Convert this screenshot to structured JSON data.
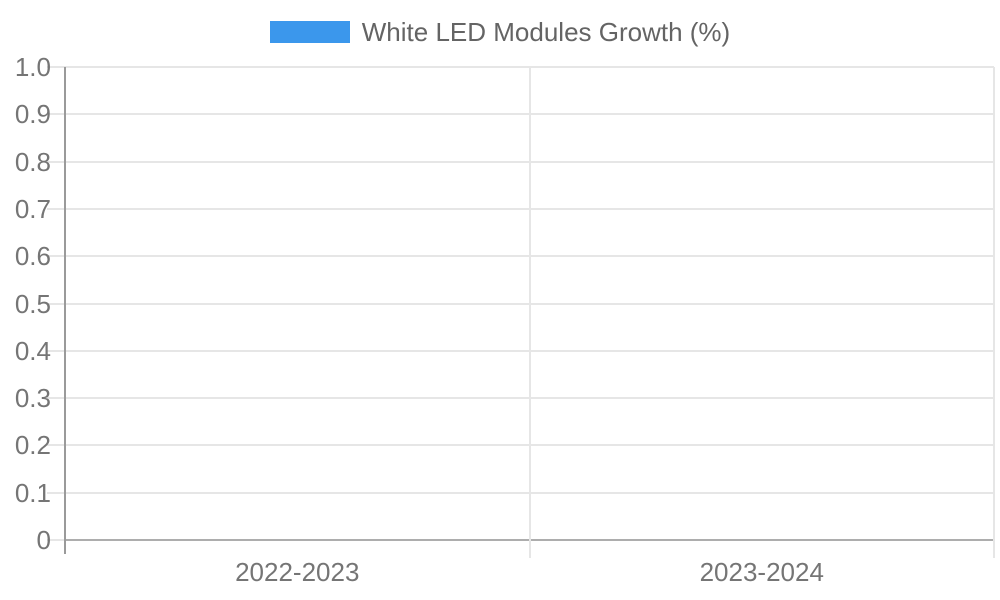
{
  "legend": {
    "label": "White LED Modules Growth (%)",
    "swatch_color": "#3b97ec"
  },
  "chart_data": {
    "type": "bar",
    "title": "White LED Modules Growth (%)",
    "categories": [
      "2022-2023",
      "2023-2024"
    ],
    "series": [
      {
        "name": "White LED Modules Growth (%)",
        "values": [
          0,
          0
        ]
      }
    ],
    "xlabel": "",
    "ylabel": "",
    "ylim": [
      0,
      1.0
    ],
    "ytick_labels": [
      "1.0",
      "0.9",
      "0.8",
      "0.7",
      "0.6",
      "0.5",
      "0.4",
      "0.3",
      "0.2",
      "0.1",
      "0"
    ],
    "grid": true,
    "legend_position": "top-center",
    "colors": {
      "series": "#3b97ec",
      "gridline": "#e6e6e6",
      "baseline": "#adadad",
      "axis": "#9a9a9a",
      "label_text": "#757575",
      "legend_text": "#646464"
    }
  }
}
